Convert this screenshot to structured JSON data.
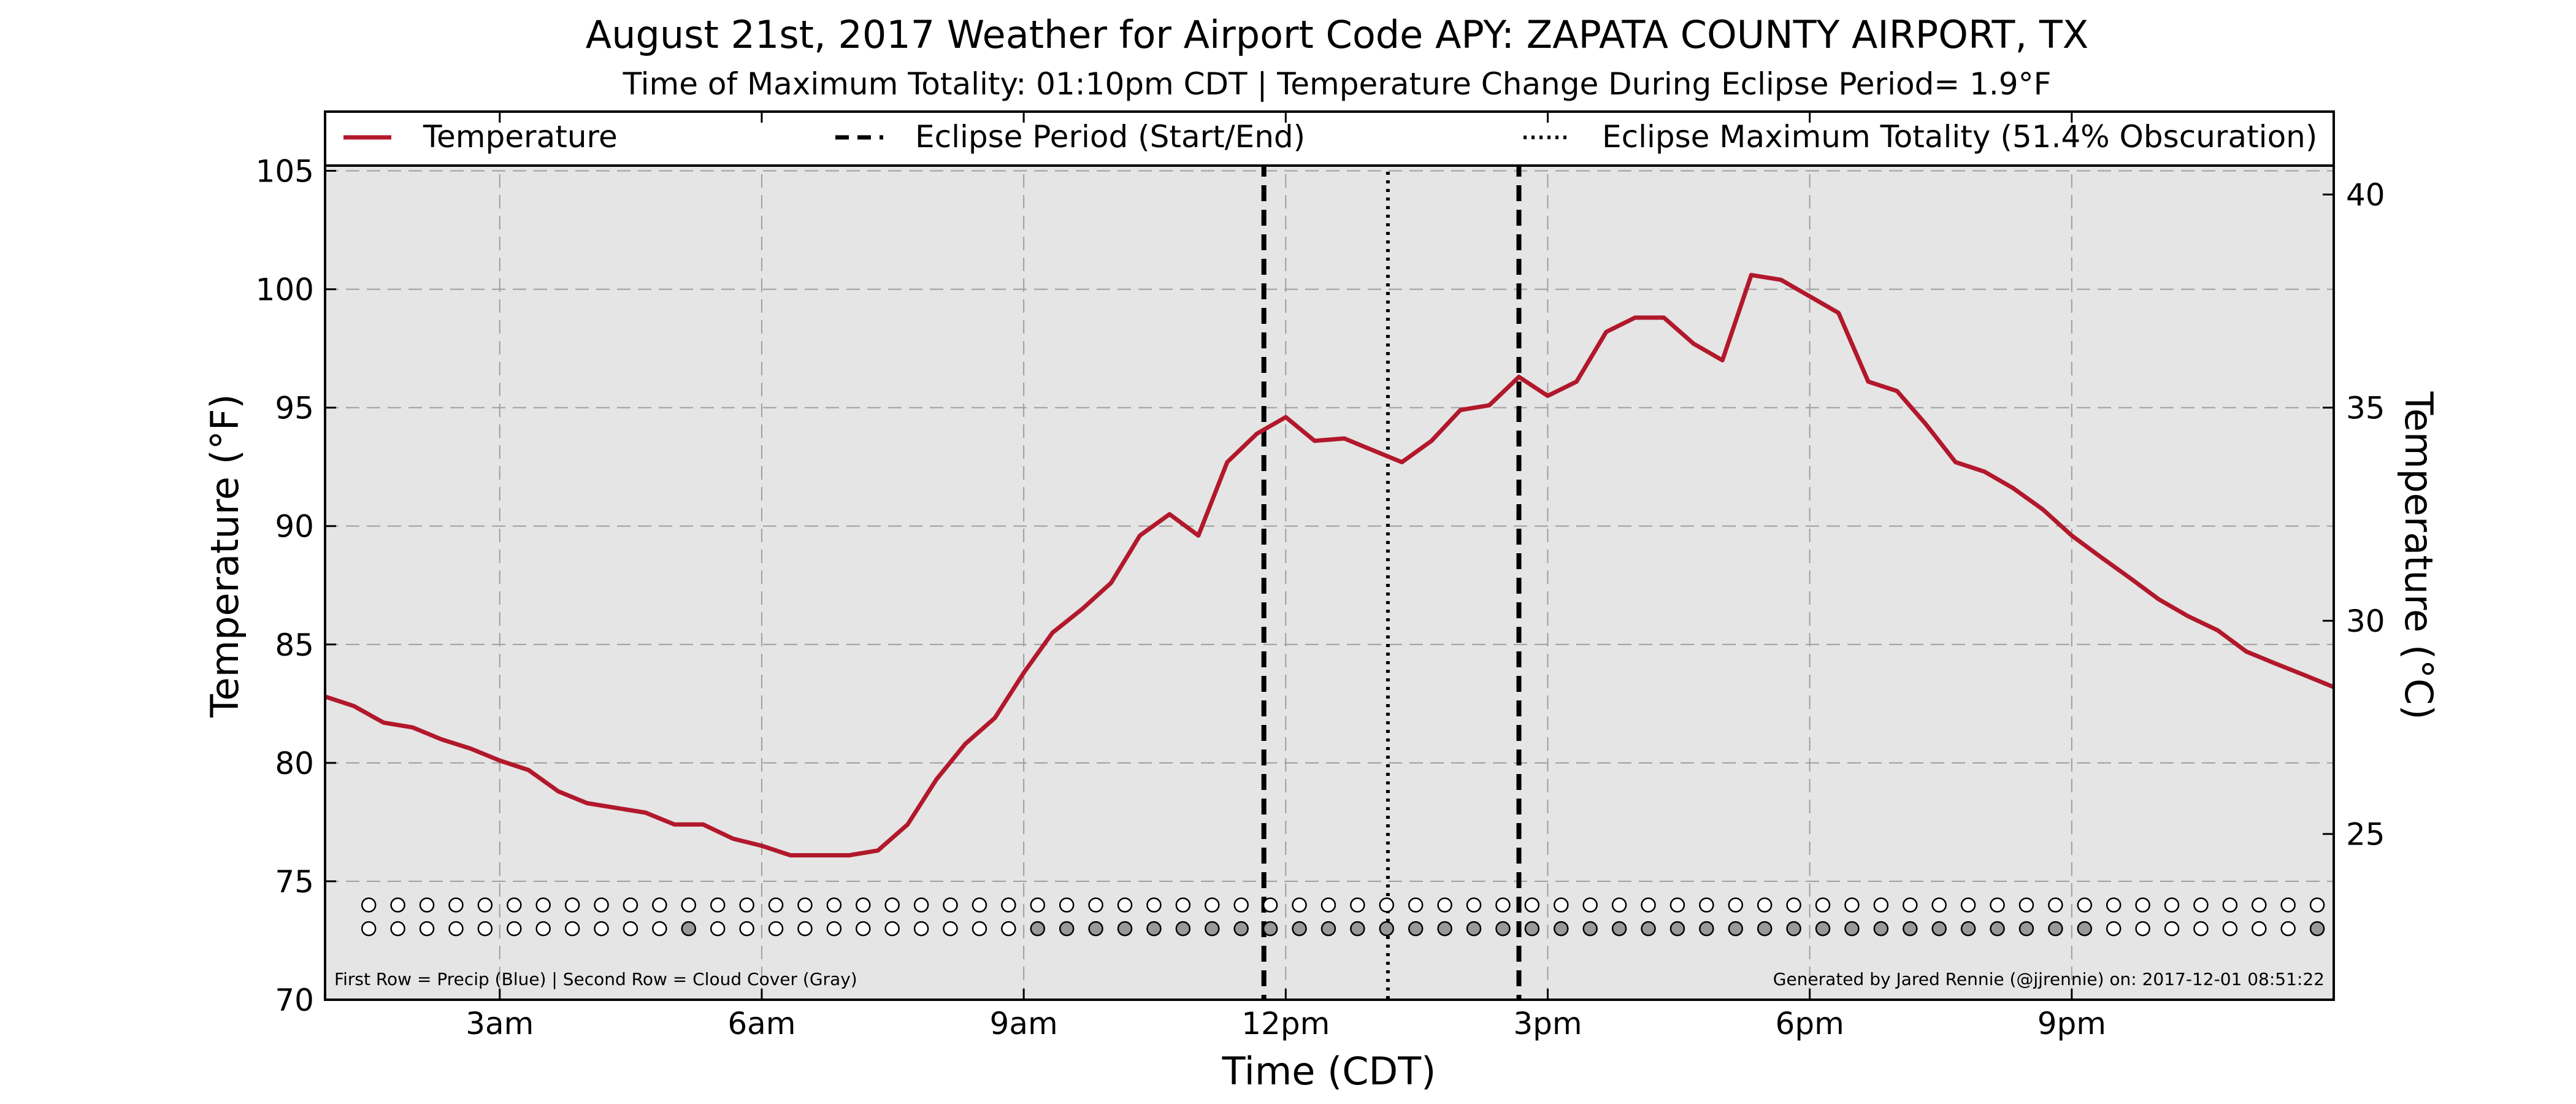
{
  "chart_data": {
    "type": "line",
    "title": "August 21st, 2017 Weather for Airport Code APY: ZAPATA COUNTY AIRPORT, TX",
    "subtitle": "Time of Maximum Totality: 01:10pm CDT | Temperature Change During Eclipse Period= 1.9°F",
    "xlabel": "Time (CDT)",
    "ylabel": "Temperature (°F)",
    "ylabel_right": "Temperature (°C)",
    "x_unit": "hours (CDT, 0 = midnight)",
    "xlim": [
      1.0,
      24.0
    ],
    "ylim": [
      70,
      107.5
    ],
    "x_ticks": [
      {
        "x": 3,
        "label": "3am"
      },
      {
        "x": 6,
        "label": "6am"
      },
      {
        "x": 9,
        "label": "9am"
      },
      {
        "x": 12,
        "label": "12pm"
      },
      {
        "x": 15,
        "label": "3pm"
      },
      {
        "x": 18,
        "label": "6pm"
      },
      {
        "x": 21,
        "label": "9pm"
      }
    ],
    "y_ticks": [
      70,
      75,
      80,
      85,
      90,
      95,
      100,
      105
    ],
    "y_ticks_right": [
      {
        "f": 77,
        "label": "25"
      },
      {
        "f": 86,
        "label": "30"
      },
      {
        "f": 95,
        "label": "35"
      },
      {
        "f": 104,
        "label": "40"
      }
    ],
    "x_grid": [
      3,
      6,
      9,
      12,
      15,
      18,
      21
    ],
    "y_grid": [
      75,
      80,
      85,
      90,
      95,
      100,
      105
    ],
    "grid": true,
    "legend_placement": "top",
    "legend": [
      {
        "label": "Temperature",
        "style": "solid",
        "color": "#b2182b"
      },
      {
        "label": "Eclipse Period (Start/End)",
        "style": "dashed",
        "color": "#000000"
      },
      {
        "label": "Eclipse Maximum Totality (51.4% Obscuration)",
        "style": "dotted",
        "color": "#000000"
      }
    ],
    "series": [
      {
        "color": "#b2182b",
        "x": [
          1.0,
          1.33,
          1.67,
          2.0,
          2.33,
          2.67,
          3.0,
          3.33,
          3.67,
          4.0,
          4.33,
          4.67,
          5.0,
          5.33,
          5.67,
          6.0,
          6.33,
          6.67,
          7.0,
          7.33,
          7.67,
          8.0,
          8.33,
          8.67,
          9.0,
          9.33,
          9.67,
          10.0,
          10.33,
          10.67,
          11.0,
          11.33,
          11.67,
          12.0,
          12.33,
          12.67,
          13.0,
          13.33,
          13.67,
          14.0,
          14.33,
          14.67,
          15.0,
          15.33,
          15.67,
          16.0,
          16.33,
          16.67,
          17.0,
          17.33,
          17.67,
          18.0,
          18.33,
          18.67,
          19.0,
          19.33,
          19.67,
          20.0,
          20.33,
          20.67,
          21.0,
          21.33,
          21.67,
          22.0,
          22.33,
          22.67,
          23.0,
          23.33,
          23.67,
          24.0
        ],
        "y": [
          82.8,
          82.4,
          81.7,
          81.5,
          81.0,
          80.6,
          80.1,
          79.7,
          78.8,
          78.3,
          78.1,
          77.9,
          77.4,
          77.4,
          76.8,
          76.5,
          76.1,
          76.1,
          76.1,
          76.3,
          77.4,
          79.3,
          80.8,
          81.9,
          83.8,
          85.5,
          86.5,
          87.6,
          89.6,
          90.5,
          89.6,
          92.7,
          93.9,
          94.6,
          93.6,
          93.7,
          93.2,
          92.7,
          93.6,
          94.9,
          95.1,
          96.3,
          95.5,
          96.1,
          98.2,
          98.8,
          98.8,
          97.7,
          97.0,
          100.6,
          100.4,
          99.7,
          99.0,
          96.1,
          95.7,
          94.3,
          92.7,
          92.3,
          91.6,
          90.7,
          89.6,
          88.7,
          87.8,
          86.9,
          86.2,
          85.6,
          84.7,
          84.2,
          83.7,
          83.2
        ]
      }
    ],
    "eclipse_start": 11.75,
    "eclipse_max": 13.17,
    "eclipse_end": 14.67,
    "precip_row": {
      "y": 74.0,
      "x_start": 1.5,
      "step": 0.333,
      "count": 68,
      "filled": []
    },
    "cloud_row": {
      "y": 73.0,
      "x_start": 1.5,
      "step": 0.333,
      "count": 68,
      "filled": [
        11,
        23,
        24,
        25,
        26,
        27,
        28,
        29,
        30,
        31,
        32,
        33,
        34,
        35,
        36,
        37,
        38,
        39,
        40,
        41,
        42,
        43,
        44,
        45,
        46,
        47,
        48,
        49,
        50,
        51,
        52,
        53,
        54,
        55,
        56,
        57,
        58,
        59,
        67
      ]
    },
    "footnote_left": "First Row = Precip (Blue) | Second Row = Cloud Cover (Gray)",
    "footnote_right": "Generated by Jared Rennie (@jjrennie) on: 2017-12-01 08:51:22",
    "colors": {
      "plot_bg": "#e5e5e5",
      "temperature": "#b2182b",
      "cloud_fill": "#999999",
      "precip_fill": "#3b6fd6"
    }
  }
}
